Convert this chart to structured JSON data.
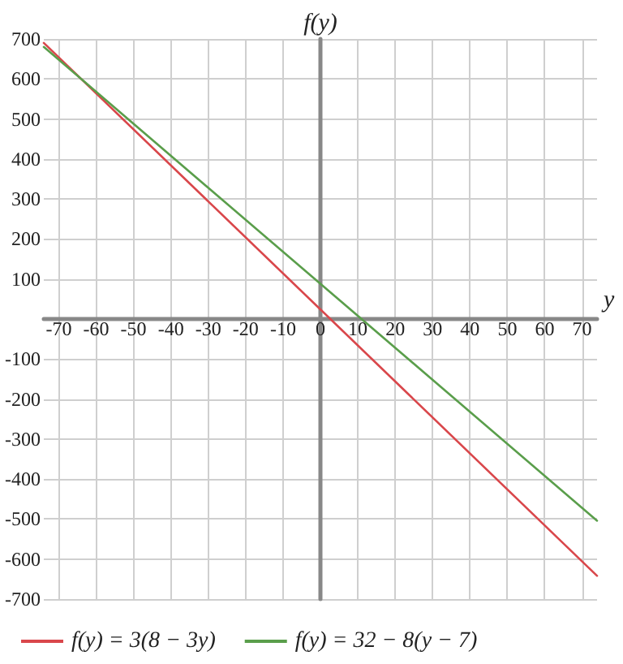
{
  "chart_data": {
    "type": "line",
    "xlabel": "y",
    "ylabel": "f(y)",
    "x": [
      -74,
      74
    ],
    "series": [
      {
        "name": "f(y) = 3(8 − 3y)",
        "color": "#d9474b",
        "values": [
          690,
          -642
        ]
      },
      {
        "name": "f(y) = 32 − 8(y − 7)",
        "color": "#5a9e4b",
        "values": [
          680,
          -504
        ]
      }
    ],
    "xlim": [
      -74,
      74
    ],
    "xticks": [
      -70,
      -60,
      -50,
      -40,
      -30,
      -20,
      -10,
      0,
      10,
      20,
      30,
      40,
      50,
      60,
      70
    ],
    "ylim": [
      -700,
      700
    ],
    "yticks": [
      -700,
      -600,
      -500,
      -400,
      -300,
      -200,
      -100,
      100,
      200,
      300,
      400,
      500,
      600,
      700
    ],
    "grid": true,
    "legend": "bottom",
    "marker": "none",
    "line_style": "solid"
  }
}
